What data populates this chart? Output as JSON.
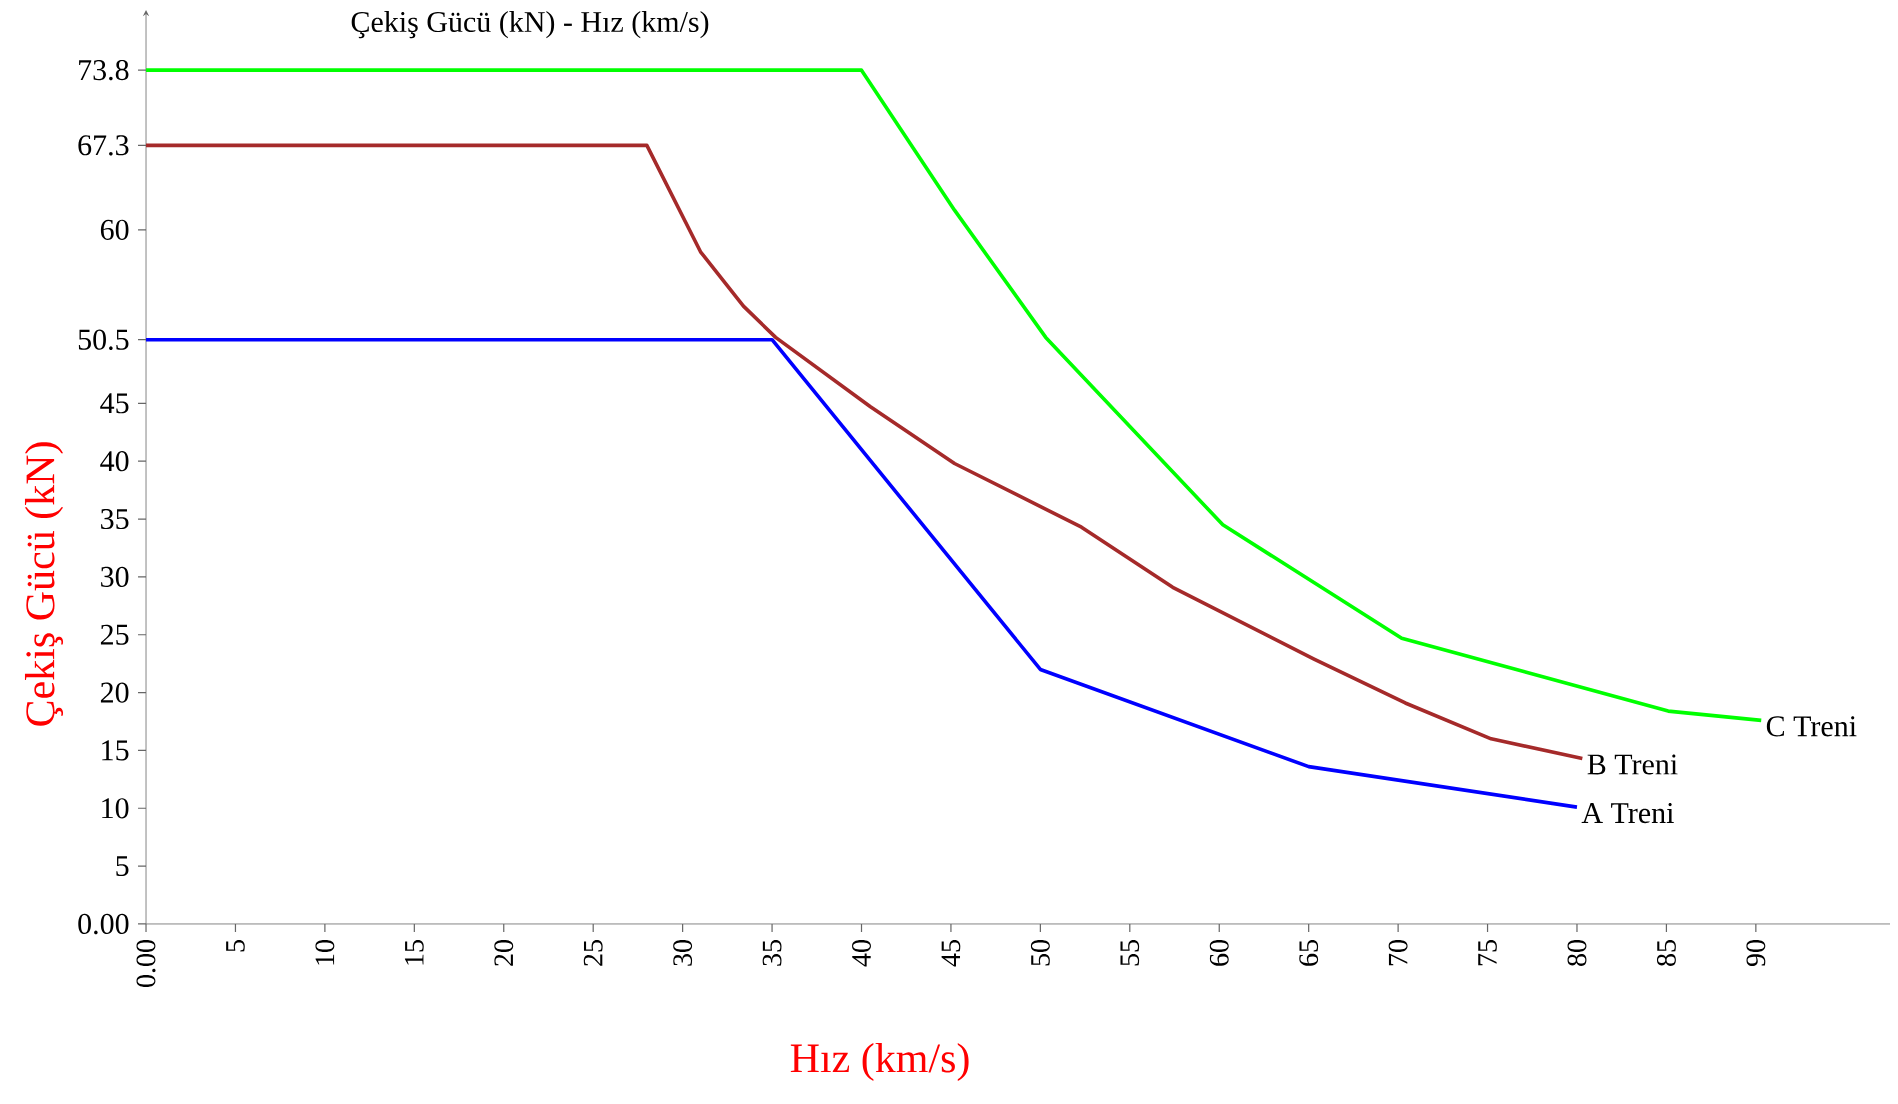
{
  "chart_data": {
    "type": "line",
    "title": "Çekiş Gücü (kN) - Hız (km/s)",
    "xlabel": "Hız (km/s)",
    "ylabel": "Çekiş Gücü (kN)",
    "xlim": [
      0,
      97.5
    ],
    "ylim": [
      0,
      79
    ],
    "xticks": [
      {
        "value": 0,
        "label": "0.00"
      },
      5,
      10,
      15,
      20,
      25,
      30,
      35,
      40,
      45,
      50,
      55,
      60,
      65,
      70,
      75,
      80,
      85,
      90
    ],
    "yticks": [
      {
        "value": 0,
        "label": "0.00"
      },
      5,
      10,
      15,
      20,
      25,
      30,
      35,
      40,
      45,
      50.5,
      60,
      67.3,
      73.8
    ],
    "grid": false,
    "legend": false,
    "marker": "none",
    "line_style": "solid",
    "series": [
      {
        "name": "A Treni",
        "color": "#0000ff",
        "x": [
          0,
          35,
          50,
          65,
          80
        ],
        "values": [
          50.5,
          50.5,
          22,
          13.6,
          10.1
        ]
      },
      {
        "name": "B Treni",
        "color": "#a52a2a",
        "x": [
          0,
          28,
          31,
          33.4,
          35.2,
          40.5,
          45.2,
          52.3,
          57.4,
          65.3,
          70.4,
          75.2,
          80.3
        ],
        "values": [
          67.3,
          67.3,
          58.1,
          53.4,
          50.7,
          44.7,
          39.8,
          34.3,
          29.1,
          22.9,
          19.1,
          16.0,
          14.3
        ]
      },
      {
        "name": "C Treni",
        "color": "#00ff00",
        "x": [
          0,
          40,
          45.2,
          50.3,
          60.2,
          70.2,
          85.1,
          90.3
        ],
        "values": [
          73.8,
          73.8,
          61.7,
          50.7,
          34.5,
          24.7,
          18.4,
          17.6
        ]
      }
    ]
  }
}
